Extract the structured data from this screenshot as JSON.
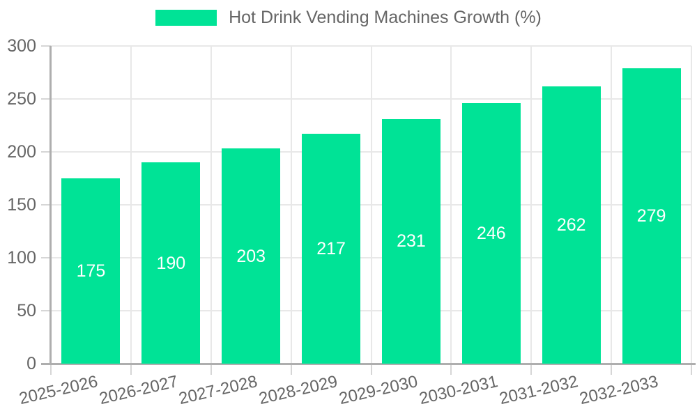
{
  "chart_data": {
    "type": "bar",
    "title": "Hot Drink Vending Machines Growth (%)",
    "legend_position": "top",
    "categories": [
      "2025-2026",
      "2026-2027",
      "2027-2028",
      "2028-2029",
      "2029-2030",
      "2030-2031",
      "2031-2032",
      "2032-2033"
    ],
    "series": [
      {
        "name": "Hot Drink Vending Machines Growth (%)",
        "values": [
          175,
          190,
          203,
          217,
          231,
          246,
          262,
          279
        ]
      }
    ],
    "value_labels": [
      "175",
      "190",
      "203",
      "217",
      "231",
      "246",
      "262",
      "279"
    ],
    "xlabel": "",
    "ylabel": "",
    "ylim": [
      0,
      300
    ],
    "ytick_step": 50,
    "yticks": [
      0,
      50,
      100,
      150,
      200,
      250,
      300
    ],
    "grid": true,
    "colors": {
      "bar": "#00E396",
      "value_label": "#ffffff",
      "tick_text": "#666666",
      "legend_text": "#666666",
      "grid_line": "#e8e8e8",
      "tick_mark": "#d6d6d6",
      "axis_line": "#aeaeae",
      "background": "#ffffff"
    }
  }
}
